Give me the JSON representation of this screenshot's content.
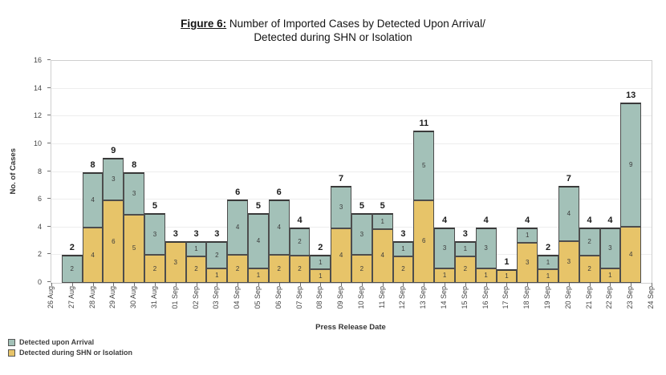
{
  "figure": {
    "title_label": "Figure 6:",
    "title_rest": " Number of Imported Cases by Detected Upon Arrival/",
    "title_line2": "Detected during SHN or Isolation"
  },
  "chart_data": {
    "type": "bar",
    "stacked": true,
    "title": "Figure 6: Number of Imported Cases by Detected Upon Arrival/ Detected during SHN or Isolation",
    "xlabel": "Press Release Date",
    "ylabel": "No. of Cases",
    "ylim": [
      0,
      16
    ],
    "ytick_step": 2,
    "grid": true,
    "legend_position": "bottom-left",
    "categories": [
      "26 Aug",
      "27 Aug",
      "28 Aug",
      "29 Aug",
      "30 Aug",
      "31 Aug",
      "01 Sep",
      "02 Sep",
      "03 Sep",
      "04 Sep",
      "05 Sep",
      "06 Sep",
      "07 Sep",
      "08 Sep",
      "09 Sep",
      "10 Sep",
      "11 Sep",
      "12 Sep",
      "13 Sep",
      "14 Sep",
      "15 Sep",
      "16 Sep",
      "17 Sep",
      "18 Sep",
      "19 Sep",
      "20 Sep",
      "21 Sep",
      "22 Sep",
      "23 Sep",
      "24 Sep"
    ],
    "series": [
      {
        "name": "Detected upon Arrival",
        "color": "#a3c1b8",
        "values": [
          0,
          2,
          4,
          3,
          3,
          3,
          0,
          1,
          2,
          4,
          4,
          4,
          2,
          1,
          3,
          3,
          1,
          1,
          5,
          3,
          1,
          3,
          0,
          1,
          1,
          4,
          2,
          3,
          9,
          0
        ]
      },
      {
        "name": "Detected during SHN or Isolation",
        "color": "#e7c469",
        "values": [
          0,
          0,
          4,
          6,
          5,
          2,
          3,
          2,
          1,
          2,
          1,
          2,
          2,
          1,
          4,
          2,
          4,
          2,
          6,
          1,
          2,
          1,
          1,
          3,
          1,
          3,
          2,
          1,
          4,
          0
        ]
      }
    ],
    "totals": [
      0,
      2,
      8,
      9,
      8,
      5,
      3,
      3,
      3,
      6,
      5,
      6,
      4,
      2,
      7,
      5,
      5,
      3,
      11,
      4,
      3,
      4,
      1,
      4,
      2,
      7,
      4,
      4,
      13,
      0
    ],
    "bar_border_color": "#4d4d4d",
    "gridline_color": "#ededed"
  }
}
